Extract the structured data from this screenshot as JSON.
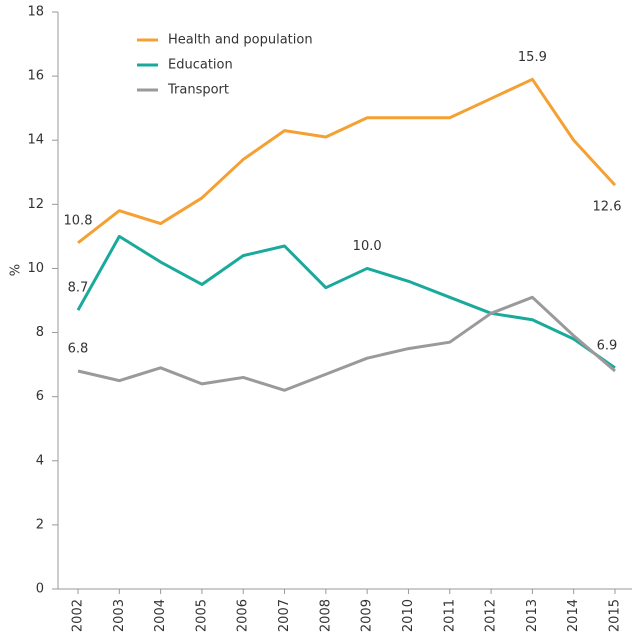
{
  "chart_data": {
    "type": "line",
    "y_label": "%",
    "categories": [
      "2002",
      "2003",
      "2004",
      "2005",
      "2006",
      "2007",
      "2008",
      "2009",
      "2010",
      "2011",
      "2012",
      "2013",
      "2014",
      "2015"
    ],
    "series": [
      {
        "name": "Health and population",
        "color": "#f5a033",
        "values": [
          10.8,
          11.8,
          11.4,
          12.2,
          13.4,
          14.3,
          14.1,
          14.7,
          14.7,
          14.7,
          15.3,
          15.9,
          14.0,
          12.6
        ],
        "value_labels": [
          "10.8",
          null,
          null,
          null,
          null,
          null,
          null,
          null,
          null,
          null,
          null,
          "15.9",
          null,
          "12.6"
        ]
      },
      {
        "name": "Education",
        "color": "#1aaa9c",
        "values": [
          8.7,
          11.0,
          10.2,
          9.5,
          10.4,
          10.7,
          9.4,
          10.0,
          9.6,
          9.1,
          8.6,
          8.4,
          7.8,
          6.9
        ],
        "value_labels": [
          "8.7",
          null,
          null,
          null,
          null,
          null,
          null,
          "10.0",
          null,
          null,
          null,
          null,
          null,
          "6.9"
        ]
      },
      {
        "name": "Transport",
        "color": "#9a9a9a",
        "values": [
          6.8,
          6.5,
          6.9,
          6.4,
          6.6,
          6.2,
          6.7,
          7.2,
          7.5,
          7.7,
          8.6,
          9.1,
          7.9,
          6.8
        ],
        "value_labels": [
          "6.8",
          null,
          null,
          null,
          null,
          null,
          null,
          null,
          null,
          null,
          null,
          null,
          null,
          null
        ]
      }
    ],
    "ylim": [
      0,
      18
    ],
    "yticks": [
      0,
      2,
      4,
      6,
      8,
      10,
      12,
      14,
      16,
      18
    ],
    "grid": false
  }
}
